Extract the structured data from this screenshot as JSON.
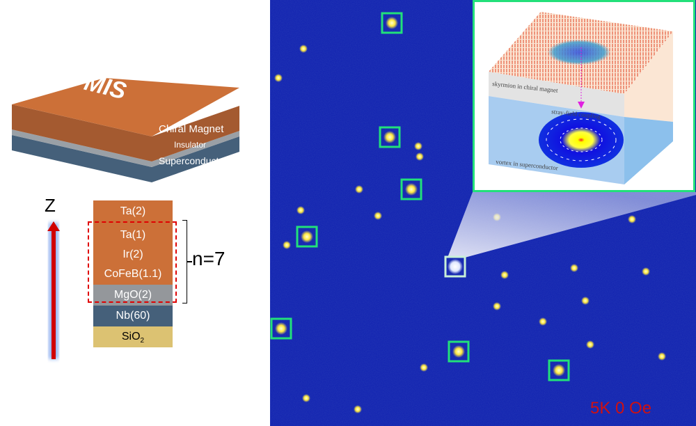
{
  "device": {
    "top_label": "MIS",
    "layers": [
      "Chiral Magnet",
      "Insulator",
      "Superconductor"
    ]
  },
  "axis": {
    "label": "Z"
  },
  "stack": {
    "top": "Ta(2)",
    "repeat": [
      "Ta(1)",
      "Ir(2)",
      "CoFeB(1.1)",
      "MgO(2)"
    ],
    "bottom": [
      "Nb(60)",
      "SiO2"
    ],
    "repeat_label": "n=7"
  },
  "image": {
    "condition_label": "5K 0 Oe",
    "box_color": "#22e07a",
    "background_color": "#1020b0",
    "spot_color": "#ffff60"
  },
  "inset": {
    "label_top": "skyrmion in chiral magnet",
    "label_coupling": "stray-field coupling",
    "label_bottom": "vortex in superconductor"
  }
}
